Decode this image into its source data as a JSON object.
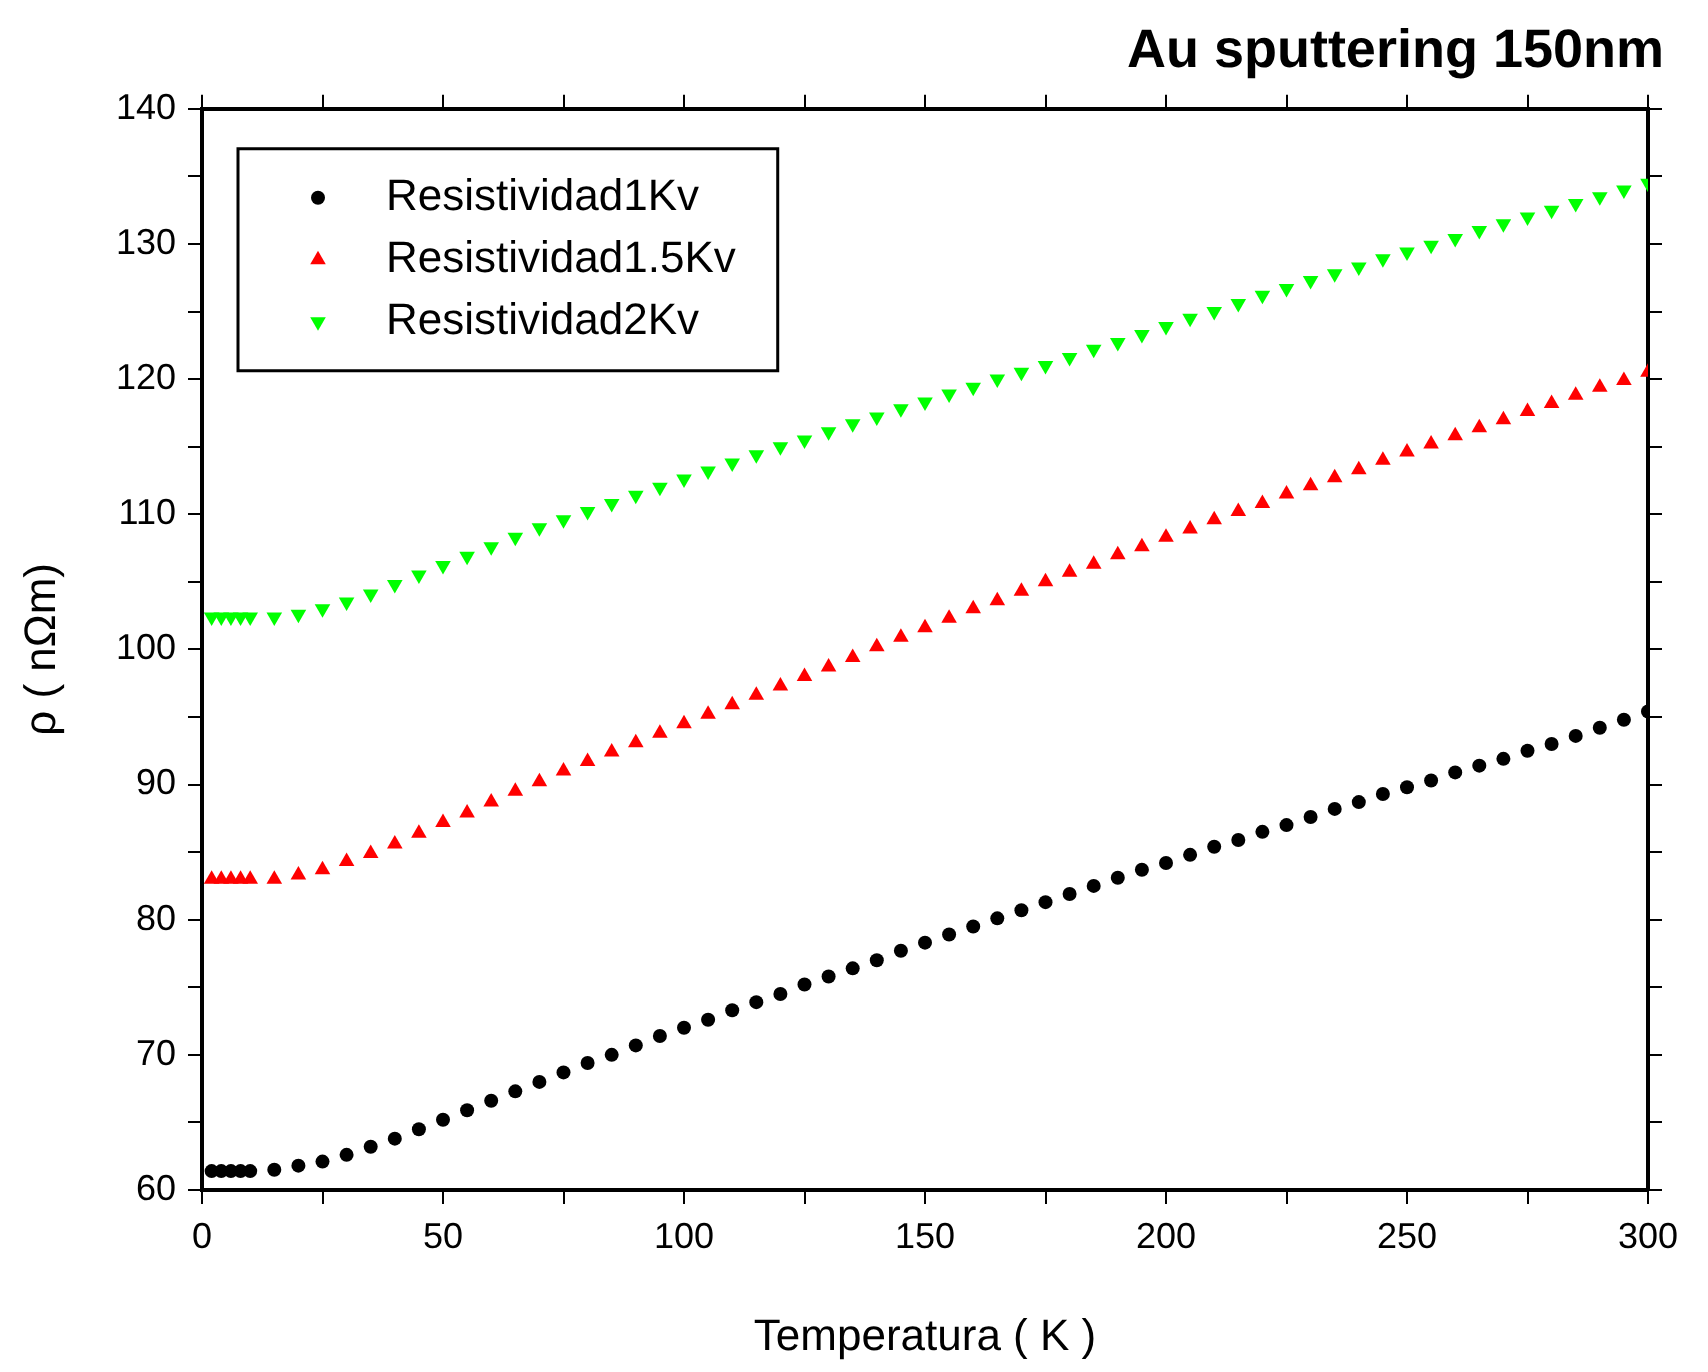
{
  "chart_data": {
    "type": "scatter",
    "title": "Au sputtering 150nm",
    "xlabel": "Temperatura ( K )",
    "ylabel": "ρ ( nΩm)",
    "x": [
      2,
      4,
      6,
      8,
      10,
      15,
      20,
      25,
      30,
      35,
      40,
      45,
      50,
      55,
      60,
      65,
      70,
      75,
      80,
      85,
      90,
      95,
      100,
      105,
      110,
      115,
      120,
      125,
      130,
      135,
      140,
      145,
      150,
      155,
      160,
      165,
      170,
      175,
      180,
      185,
      190,
      195,
      200,
      205,
      210,
      215,
      220,
      225,
      230,
      235,
      240,
      245,
      250,
      255,
      260,
      265,
      270,
      275,
      280,
      285,
      290,
      295,
      300
    ],
    "series": [
      {
        "name": "Resistividad1Kv",
        "color": "#000000",
        "marker": "circle",
        "values": [
          61.4,
          61.4,
          61.4,
          61.4,
          61.4,
          61.5,
          61.8,
          62.1,
          62.6,
          63.2,
          63.8,
          64.5,
          65.2,
          65.9,
          66.6,
          67.3,
          68.0,
          68.7,
          69.4,
          70.0,
          70.7,
          71.4,
          72.0,
          72.6,
          73.3,
          73.9,
          74.5,
          75.2,
          75.8,
          76.4,
          77.0,
          77.7,
          78.3,
          78.9,
          79.5,
          80.1,
          80.7,
          81.3,
          81.9,
          82.5,
          83.1,
          83.7,
          84.2,
          84.8,
          85.4,
          85.9,
          86.5,
          87.0,
          87.6,
          88.2,
          88.7,
          89.3,
          89.8,
          90.3,
          90.9,
          91.4,
          91.9,
          92.5,
          93.0,
          93.6,
          94.2,
          94.8,
          95.4
        ]
      },
      {
        "name": "Resistividad1.5Kv",
        "color": "#ff0000",
        "marker": "triangle",
        "values": [
          83.0,
          83.0,
          83.0,
          83.0,
          83.0,
          83.0,
          83.3,
          83.7,
          84.3,
          84.9,
          85.6,
          86.4,
          87.2,
          87.9,
          88.7,
          89.5,
          90.2,
          91.0,
          91.7,
          92.4,
          93.1,
          93.8,
          94.5,
          95.2,
          95.9,
          96.6,
          97.3,
          98.0,
          98.7,
          99.4,
          100.2,
          100.9,
          101.6,
          102.3,
          103.0,
          103.6,
          104.3,
          105.0,
          105.7,
          106.3,
          107.0,
          107.6,
          108.3,
          108.9,
          109.6,
          110.2,
          110.8,
          111.5,
          112.1,
          112.7,
          113.3,
          114.0,
          114.6,
          115.2,
          115.8,
          116.4,
          117.0,
          117.6,
          118.2,
          118.8,
          119.4,
          119.9,
          120.5
        ]
      },
      {
        "name": "Resistividad2Kv",
        "color": "#00ff00",
        "marker": "triangle-down",
        "values": [
          102.4,
          102.4,
          102.4,
          102.4,
          102.4,
          102.4,
          102.6,
          103.0,
          103.5,
          104.1,
          104.8,
          105.5,
          106.2,
          106.9,
          107.6,
          108.3,
          109.0,
          109.6,
          110.2,
          110.8,
          111.4,
          112.0,
          112.6,
          113.2,
          113.8,
          114.4,
          115.0,
          115.5,
          116.1,
          116.7,
          117.2,
          117.8,
          118.3,
          118.9,
          119.4,
          120.0,
          120.5,
          121.0,
          121.6,
          122.2,
          122.7,
          123.3,
          123.9,
          124.5,
          125.0,
          125.6,
          126.2,
          126.7,
          127.3,
          127.8,
          128.3,
          128.9,
          129.4,
          129.9,
          130.4,
          131.0,
          131.5,
          132.0,
          132.5,
          133.0,
          133.5,
          134.0,
          134.5
        ]
      }
    ],
    "xlim": [
      0,
      300
    ],
    "xticks": [
      0,
      {
        "value": 25,
        "label": null
      },
      50,
      {
        "value": 75,
        "label": null
      },
      100,
      {
        "value": 125,
        "label": null
      },
      150,
      {
        "value": 175,
        "label": null
      },
      200,
      {
        "value": 225,
        "label": null
      },
      250,
      {
        "value": 275,
        "label": null
      },
      300
    ],
    "ylim": [
      60,
      140
    ],
    "yticks": [
      60,
      {
        "value": 65,
        "label": null
      },
      70,
      {
        "value": 75,
        "label": null
      },
      80,
      {
        "value": 85,
        "label": null
      },
      90,
      {
        "value": 95,
        "label": null
      },
      100,
      {
        "value": 105,
        "label": null
      },
      110,
      {
        "value": 115,
        "label": null
      },
      120,
      {
        "value": 125,
        "label": null
      },
      130,
      {
        "value": 135,
        "label": null
      },
      140
    ],
    "legend": "top left",
    "grid": false
  }
}
